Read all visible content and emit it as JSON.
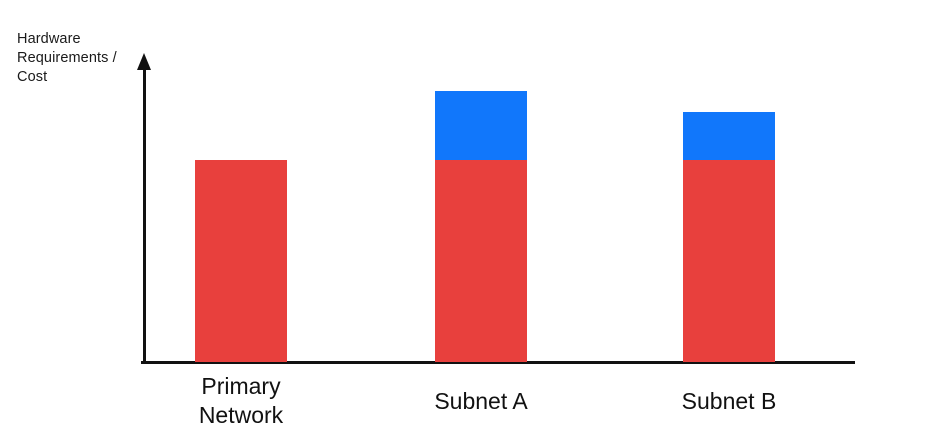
{
  "page": {
    "background_color": "#ffffff",
    "text_color": "#111111",
    "axis_color": "#111111"
  },
  "chart": {
    "y_axis_label": "Hardware\nRequirements /\nCost"
  },
  "chart_data": {
    "type": "bar",
    "stacked": true,
    "title": "",
    "xlabel": "",
    "ylabel": "Hardware Requirements / Cost",
    "categories": [
      "Primary Network",
      "Subnet A",
      "Subnet B"
    ],
    "series": [
      {
        "name": "red-base-segment",
        "color": "#E8403D",
        "values": [
          100,
          100,
          100
        ]
      },
      {
        "name": "blue-overhead-segment",
        "color": "#1177FB",
        "values": [
          0,
          34,
          24
        ]
      }
    ],
    "ylim": [
      0,
      150
    ],
    "units": "relative (no numeric scale shown on axis)",
    "grid": false,
    "legend": "none",
    "y_ticks": "none",
    "x_axis_arrow": false,
    "y_axis_arrow": true
  }
}
